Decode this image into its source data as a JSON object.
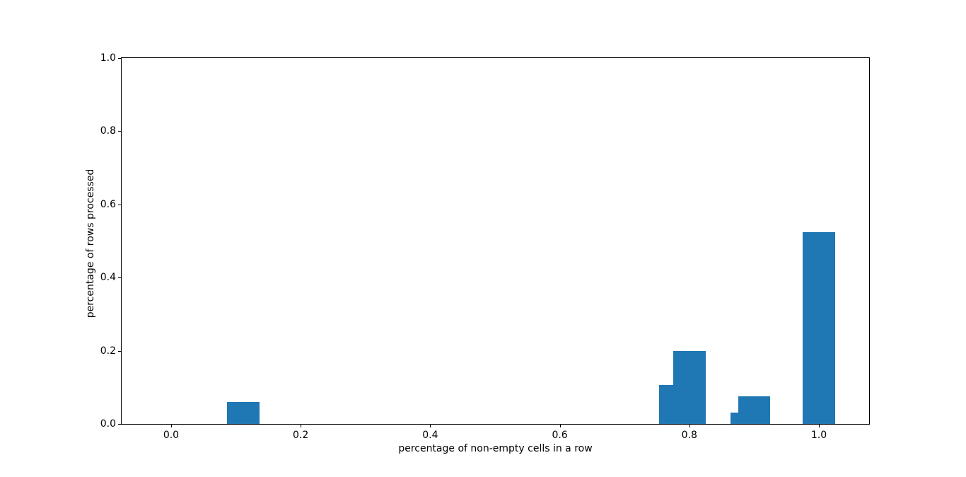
{
  "figure": {
    "background": "#ffffff"
  },
  "chart_data": {
    "type": "bar",
    "x": [
      0.111,
      0.778,
      0.8,
      0.889,
      0.9,
      1.0
    ],
    "values": [
      0.06,
      0.106,
      0.199,
      0.031,
      0.075,
      0.524
    ],
    "bar_width": 0.05,
    "bar_color": "#1f77b4",
    "title": "",
    "xlabel": "percentage of non-empty cells in a row",
    "ylabel": "percentage of rows processed",
    "xticks": [
      0.0,
      0.2,
      0.4,
      0.6,
      0.8,
      1.0
    ],
    "xtick_labels": [
      "0.0",
      "0.2",
      "0.4",
      "0.6",
      "0.8",
      "1.0"
    ],
    "yticks": [
      0.0,
      0.2,
      0.4,
      0.6,
      0.8,
      1.0
    ],
    "ytick_labels": [
      "0.0",
      "0.2",
      "0.4",
      "0.6",
      "0.8",
      "1.0"
    ],
    "xlim": [
      -0.0764,
      1.0775
    ],
    "ylim": [
      0.0,
      1.0
    ],
    "grid": false,
    "legend": null
  }
}
